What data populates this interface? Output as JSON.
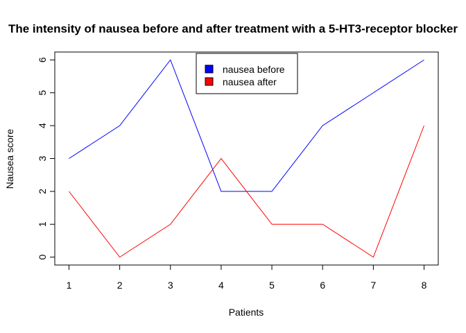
{
  "chart_data": {
    "type": "line",
    "title": "The intensity of nausea before and after treatment with a 5-HT3-receptor blocker",
    "xlabel": "Patients",
    "ylabel": "Nausea score",
    "x": [
      1,
      2,
      3,
      4,
      5,
      6,
      7,
      8
    ],
    "xlim": [
      0.72,
      8.28
    ],
    "ylim": [
      -0.24,
      6.24
    ],
    "xticks": [
      1,
      2,
      3,
      4,
      5,
      6,
      7,
      8
    ],
    "yticks": [
      0,
      1,
      2,
      3,
      4,
      5,
      6
    ],
    "grid": false,
    "legend_position": "top-center",
    "series": [
      {
        "name": "nausea before",
        "color": "#0000ff",
        "values": [
          3,
          4,
          6,
          2,
          2,
          4,
          5,
          6
        ]
      },
      {
        "name": "nausea after",
        "color": "#ff0000",
        "values": [
          2,
          0,
          1,
          3,
          1,
          1,
          0,
          4
        ]
      }
    ]
  }
}
